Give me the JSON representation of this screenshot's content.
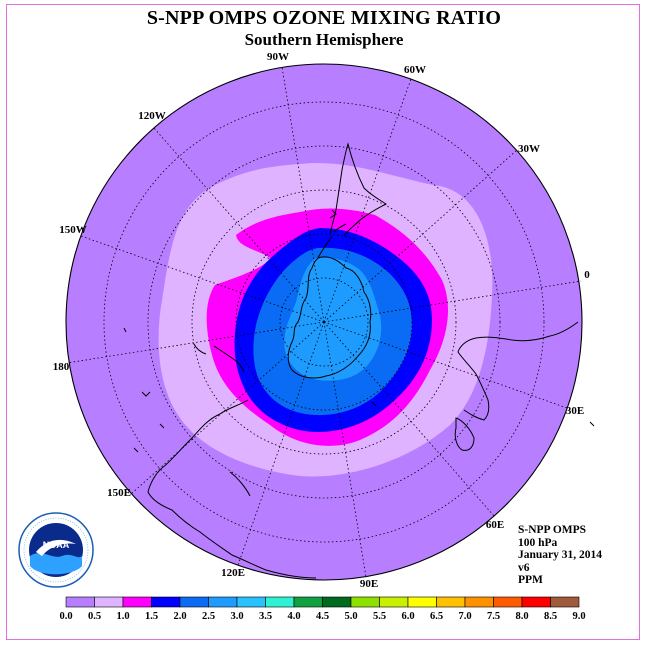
{
  "title": "S-NPP OMPS OZONE MIXING RATIO",
  "subtitle": "Southern Hemisphere",
  "longitude_labels": [
    "90W",
    "60W",
    "30W",
    "0",
    "30E",
    "60E",
    "90E",
    "120E",
    "150E",
    "180",
    "150W",
    "120W"
  ],
  "info": {
    "instrument": "S-NPP OMPS",
    "level": "100 hPa",
    "date": "January 31, 2014",
    "version": "v6",
    "units": "PPM"
  },
  "colorbar": {
    "ticks": [
      "0.0",
      "0.5",
      "1.0",
      "1.5",
      "2.0",
      "2.5",
      "3.0",
      "3.5",
      "4.0",
      "4.5",
      "5.0",
      "5.5",
      "6.0",
      "6.5",
      "7.0",
      "7.5",
      "8.0",
      "8.5",
      "9.0"
    ],
    "colors": [
      "#b77fff",
      "#dfb3ff",
      "#ff00ff",
      "#0000ff",
      "#0a6cf5",
      "#1e9bff",
      "#28c3ff",
      "#2ef2d2",
      "#10a040",
      "#006a20",
      "#8ee000",
      "#c8f000",
      "#ffff00",
      "#ffc000",
      "#ff9000",
      "#ff5a00",
      "#ff0000",
      "#a05a3c"
    ]
  },
  "map_colors": {
    "ocean_bg": "#b77fff",
    "band_0_5": "#dfb3ff",
    "band_1_0": "#ff00ff",
    "band_1_5": "#0000ff",
    "band_2_0": "#0a6cf5",
    "band_2_5": "#1e9bff"
  }
}
